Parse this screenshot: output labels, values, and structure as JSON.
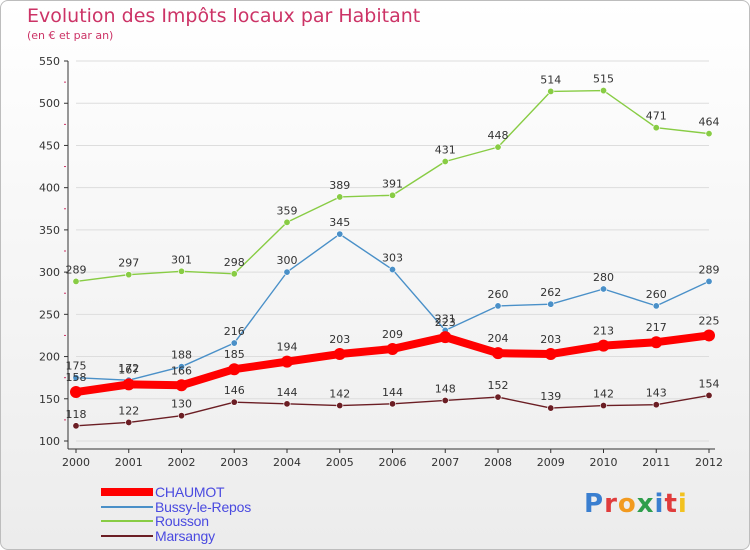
{
  "title": "Evolution des Impôts locaux par Habitant",
  "subtitle": "(en € et par an)",
  "brand": {
    "text": "Proxiti"
  },
  "colors": {
    "title": "#cc3366",
    "axis": "#333333",
    "grid": "#dddddd",
    "legend_text": "#4a4ae0"
  },
  "chart_data": {
    "type": "line",
    "title": "Evolution des Impôts locaux par Habitant",
    "subtitle": "(en € et par an)",
    "x": [
      "2000",
      "2001",
      "2002",
      "2003",
      "2004",
      "2005",
      "2006",
      "2007",
      "2008",
      "2009",
      "2010",
      "2011",
      "2012"
    ],
    "ylim": [
      100,
      550
    ],
    "yticks": [
      100,
      150,
      200,
      250,
      300,
      350,
      400,
      450,
      500,
      550
    ],
    "grid": "horizontal",
    "legend": "bottom-left",
    "series": [
      {
        "name": "CHAUMOT",
        "color": "#ff0000",
        "values": [
          158,
          167,
          166,
          185,
          194,
          203,
          209,
          223,
          204,
          203,
          213,
          217,
          225
        ]
      },
      {
        "name": "Bussy-le-Repos",
        "color": "#4a90c8",
        "values": [
          175,
          172,
          188,
          216,
          300,
          345,
          303,
          231,
          260,
          262,
          280,
          260,
          289
        ]
      },
      {
        "name": "Rousson",
        "color": "#88cc44",
        "values": [
          289,
          297,
          301,
          298,
          359,
          389,
          391,
          431,
          448,
          514,
          515,
          471,
          464
        ]
      },
      {
        "name": "Marsangy",
        "color": "#6b1e24",
        "values": [
          118,
          122,
          130,
          146,
          144,
          142,
          144,
          148,
          152,
          139,
          142,
          143,
          154
        ]
      }
    ]
  },
  "legend_items": [
    {
      "label": "CHAUMOT"
    },
    {
      "label": "Bussy-le-Repos"
    },
    {
      "label": "Rousson"
    },
    {
      "label": "Marsangy"
    }
  ]
}
